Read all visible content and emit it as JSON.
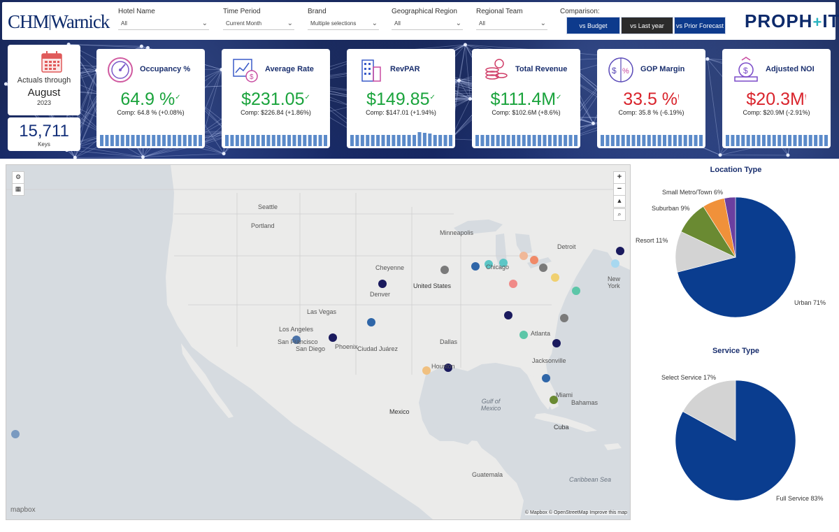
{
  "header": {
    "logo_left": {
      "part1": "CHM",
      "part2": "Warnick"
    },
    "logo_right": {
      "part1": "PROPH",
      "part2": "IT",
      "plus": "+"
    },
    "filters": [
      {
        "label": "Hotel Name",
        "value": "All"
      },
      {
        "label": "Time Period",
        "value": "Current Month"
      },
      {
        "label": "Brand",
        "value": "Multiple selections"
      },
      {
        "label": "Geographical Region",
        "value": "All"
      },
      {
        "label": "Regional Team",
        "value": "All"
      }
    ],
    "comparison_label": "Comparison:",
    "comparison_buttons": [
      {
        "label": "vs Budget",
        "color": "#0d3a8c",
        "selected": true
      },
      {
        "label": "vs Last year",
        "color": "#2b2b2b",
        "selected": false
      },
      {
        "label": "vs Prior Forecast",
        "color": "#0d3a8c",
        "selected": false
      }
    ]
  },
  "actuals": {
    "line1": "Actuals through",
    "month": "August",
    "year": "2023"
  },
  "keys": {
    "value": "15,711",
    "label": "Keys"
  },
  "kpis": [
    {
      "title": "Occupancy %",
      "icon": "gauge-icon",
      "value": "64.9 %",
      "mark": "✓",
      "comp": "Comp: 64.8 % (+0.08%)",
      "status": "good",
      "bars": [
        0.8,
        0.8,
        0.8,
        0.8,
        0.8,
        0.8,
        0.8,
        0.8,
        0.8,
        0.8,
        0.8,
        0.8,
        0.8,
        0.8,
        0.8,
        0.8,
        0.8,
        0.8,
        0.8,
        0.8
      ]
    },
    {
      "title": "Average Rate",
      "icon": "rate-chart-icon",
      "value": "$231.05",
      "mark": "✓",
      "comp": "Comp: $226.84 (+1.86%)",
      "status": "good",
      "bars": [
        0.8,
        0.8,
        0.8,
        0.8,
        0.8,
        0.8,
        0.8,
        0.8,
        0.8,
        0.8,
        0.8,
        0.8,
        0.8,
        0.8,
        0.8,
        0.8,
        0.8,
        0.8,
        0.8,
        0.8
      ]
    },
    {
      "title": "RevPAR",
      "icon": "building-icon",
      "value": "$149.85",
      "mark": "✓",
      "comp": "Comp: $147.01 (+1.94%)",
      "status": "good",
      "bars": [
        0.8,
        0.8,
        0.8,
        0.8,
        0.8,
        0.8,
        0.8,
        0.8,
        0.8,
        0.8,
        0.8,
        0.8,
        0.8,
        1.0,
        0.95,
        0.9,
        0.8,
        0.8,
        0.8,
        0.8
      ]
    },
    {
      "title": "Total Revenue",
      "icon": "coins-icon",
      "value": "$111.4M",
      "mark": "✓",
      "comp": "Comp: $102.6M (+8.6%)",
      "status": "good",
      "bars": [
        0.8,
        0.8,
        0.8,
        0.8,
        0.8,
        0.8,
        0.8,
        0.8,
        0.8,
        0.8,
        0.8,
        0.8,
        0.8,
        0.8,
        0.8,
        0.8,
        0.8,
        0.8,
        0.8,
        0.8
      ]
    },
    {
      "title": "GOP Margin",
      "icon": "percent-dollar-icon",
      "value": "33.5 %",
      "mark": "!",
      "comp": "Comp: 35.8 % (-6.19%)",
      "status": "bad",
      "bars": [
        0.8,
        0.8,
        0.8,
        0.8,
        0.8,
        0.8,
        0.8,
        0.8,
        0.8,
        0.8,
        0.8,
        0.8,
        0.8,
        0.8,
        0.8,
        0.8,
        0.8,
        0.8,
        0.8,
        0.8
      ]
    },
    {
      "title": "Adjusted NOI",
      "icon": "money-growth-icon",
      "value": "$20.3M",
      "mark": "!",
      "comp": "Comp: $20.9M (-2.91%)",
      "status": "bad",
      "bars": [
        0.8,
        0.8,
        0.8,
        0.8,
        0.8,
        0.8,
        0.8,
        0.8,
        0.8,
        0.8,
        0.8,
        0.8,
        0.8,
        0.8,
        0.8,
        0.8,
        0.8,
        0.8,
        0.8,
        0.8
      ]
    }
  ],
  "colors": {
    "good": "#1aa33c",
    "bad": "#d9242c",
    "bar": "#5b8ac9",
    "title": "#1a2f6e"
  },
  "map": {
    "labels": [
      {
        "text": "United States",
        "kind": "country"
      },
      {
        "text": "Mexico",
        "kind": "country"
      },
      {
        "text": "Cuba",
        "kind": "country"
      },
      {
        "text": "Gulf of Mexico",
        "kind": "ocean"
      },
      {
        "text": "Caribbean Sea",
        "kind": "ocean"
      },
      {
        "text": "Seattle",
        "kind": "city"
      },
      {
        "text": "Portland",
        "kind": "city"
      },
      {
        "text": "San Francisco",
        "kind": "city"
      },
      {
        "text": "Los Angeles",
        "kind": "city"
      },
      {
        "text": "San Diego",
        "kind": "city"
      },
      {
        "text": "Las Vegas",
        "kind": "city"
      },
      {
        "text": "Phoenix",
        "kind": "city"
      },
      {
        "text": "Denver",
        "kind": "city"
      },
      {
        "text": "Cheyenne",
        "kind": "city"
      },
      {
        "text": "Dallas",
        "kind": "city"
      },
      {
        "text": "Houston",
        "kind": "city"
      },
      {
        "text": "Chicago",
        "kind": "city"
      },
      {
        "text": "Atlanta",
        "kind": "city"
      },
      {
        "text": "Jacksonville",
        "kind": "city"
      },
      {
        "text": "Miami",
        "kind": "city"
      },
      {
        "text": "New York",
        "kind": "city"
      },
      {
        "text": "Bahamas",
        "kind": "city"
      },
      {
        "text": "Guatemala",
        "kind": "city"
      },
      {
        "text": "Ciudad Juárez",
        "kind": "city"
      },
      {
        "text": "Minneapolis",
        "kind": "city"
      },
      {
        "text": "Detroit",
        "kind": "city"
      }
    ],
    "controls": [
      "+",
      "−"
    ],
    "brand": "mapbox",
    "attribution": "© Mapbox © OpenStreetMap Improve this map"
  },
  "pies": [
    {
      "title": "Location Type",
      "slices": [
        {
          "name": "Urban",
          "percent": 71,
          "color": "#0a3d8f",
          "label": "Urban 71%"
        },
        {
          "name": "Resort",
          "percent": 11,
          "color": "#d3d3d3",
          "label": "Resort 11%"
        },
        {
          "name": "Suburban",
          "percent": 9,
          "color": "#6a8a32",
          "label": "Suburban 9%"
        },
        {
          "name": "Small Metro/Town",
          "percent": 6,
          "color": "#f0913a",
          "label": "Small Metro/Town 6%"
        },
        {
          "name": "Other",
          "percent": 3,
          "color": "#6b3fa0",
          "label": ""
        }
      ]
    },
    {
      "title": "Service Type",
      "slices": [
        {
          "name": "Full Service",
          "percent": 83,
          "color": "#0a3d8f",
          "label": "Full Service 83%"
        },
        {
          "name": "Select Service",
          "percent": 17,
          "color": "#d3d3d3",
          "label": "Select Service 17%"
        }
      ]
    }
  ],
  "chart_data": [
    {
      "type": "pie",
      "title": "Location Type",
      "categories": [
        "Urban",
        "Resort",
        "Suburban",
        "Small Metro/Town",
        "Other"
      ],
      "values": [
        71,
        11,
        9,
        6,
        3
      ]
    },
    {
      "type": "pie",
      "title": "Service Type",
      "categories": [
        "Full Service",
        "Select Service"
      ],
      "values": [
        83,
        17
      ]
    }
  ]
}
